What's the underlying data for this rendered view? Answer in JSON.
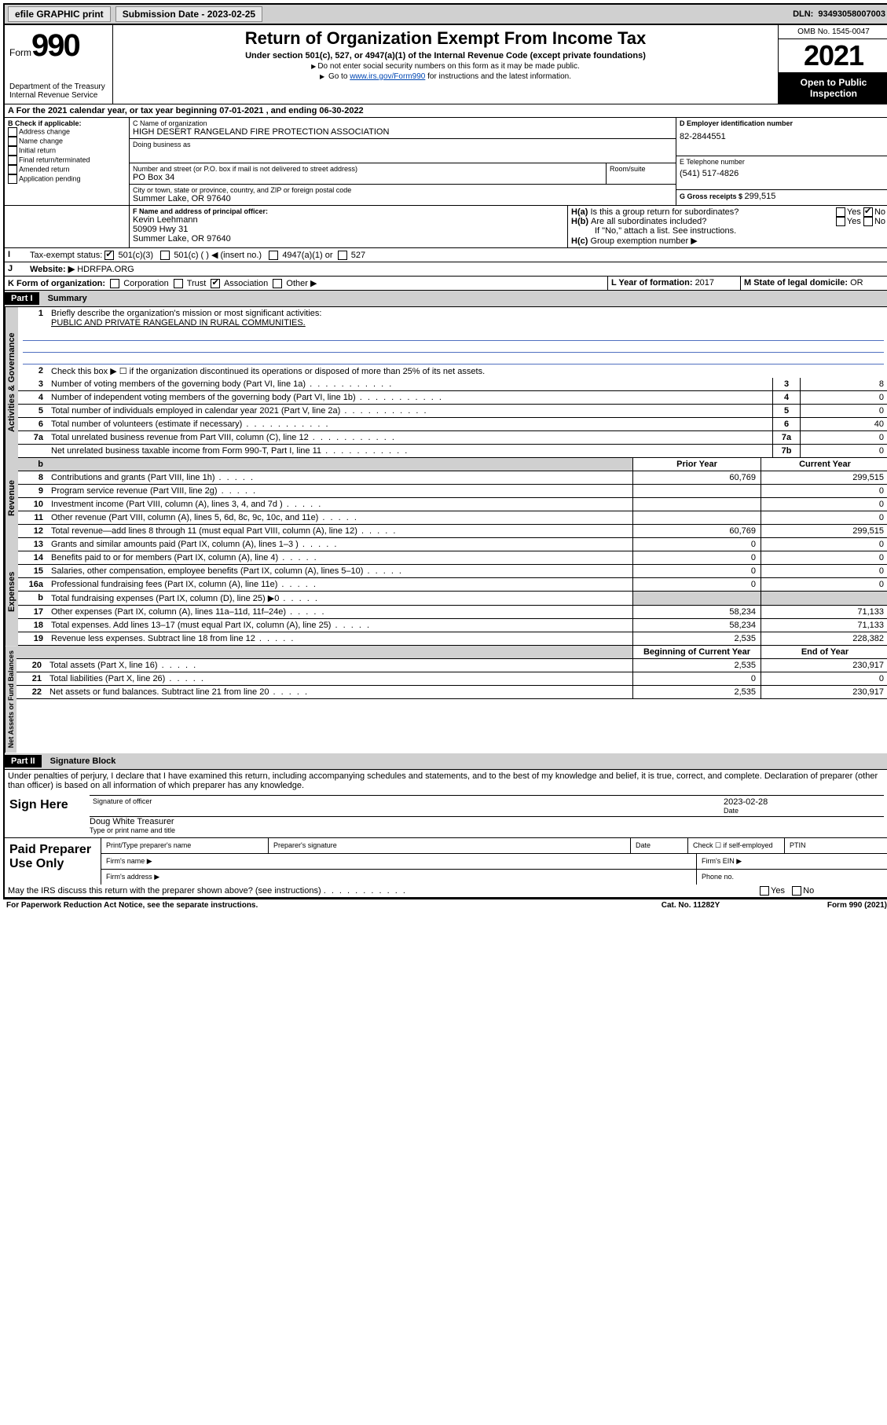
{
  "topbar": {
    "efile": "efile GRAPHIC print",
    "sub_label": "Submission Date - ",
    "sub_date": "2023-02-25",
    "dln_label": "DLN: ",
    "dln": "93493058007003"
  },
  "header": {
    "form_word": "Form",
    "form_num": "990",
    "dept": "Department of the Treasury",
    "irs": "Internal Revenue Service",
    "title": "Return of Organization Exempt From Income Tax",
    "subtitle": "Under section 501(c), 527, or 4947(a)(1) of the Internal Revenue Code (except private foundations)",
    "note1": "Do not enter social security numbers on this form as it may be made public.",
    "note2_pre": "Go to ",
    "note2_link": "www.irs.gov/Form990",
    "note2_post": " for instructions and the latest information.",
    "omb": "OMB No. 1545-0047",
    "year": "2021",
    "inspect": "Open to Public Inspection"
  },
  "periodA": {
    "text_pre": "For the 2021 calendar year, or tax year beginning ",
    "begin": "07-01-2021",
    "mid": " , and ending ",
    "end": "06-30-2022"
  },
  "B": {
    "hdr": "B Check if applicable:",
    "items": [
      "Address change",
      "Name change",
      "Initial return",
      "Final return/terminated",
      "Amended return",
      "Application pending"
    ]
  },
  "C": {
    "name_lbl": "C Name of organization",
    "name": "HIGH DESERT RANGELAND FIRE PROTECTION ASSOCIATION",
    "dba_lbl": "Doing business as",
    "addr_lbl": "Number and street (or P.O. box if mail is not delivered to street address)",
    "room_lbl": "Room/suite",
    "addr": "PO Box 34",
    "city_lbl": "City or town, state or province, country, and ZIP or foreign postal code",
    "city": "Summer Lake, OR  97640"
  },
  "D": {
    "lbl": "D Employer identification number",
    "val": "82-2844551"
  },
  "E": {
    "lbl": "E Telephone number",
    "val": "(541) 517-4826"
  },
  "G": {
    "lbl": "G Gross receipts $ ",
    "val": "299,515"
  },
  "F": {
    "lbl": "F Name and address of principal officer:",
    "name": "Kevin Leehmann",
    "addr1": "50909 Hwy 31",
    "addr2": "Summer Lake, OR  97640"
  },
  "H": {
    "a": "Is this a group return for subordinates?",
    "b": "Are all subordinates included?",
    "b_note": "If \"No,\" attach a list. See instructions.",
    "c": "Group exemption number ▶",
    "yes": "Yes",
    "no": "No"
  },
  "I": {
    "lbl": "Tax-exempt status:",
    "opt1": "501(c)(3)",
    "opt2": "501(c) (  ) ◀ (insert no.)",
    "opt3": "4947(a)(1) or",
    "opt4": "527"
  },
  "J": {
    "lbl": "Website: ▶",
    "val": "HDRFPA.ORG"
  },
  "K": {
    "lbl": "K Form of organization:",
    "opts": [
      "Corporation",
      "Trust",
      "Association",
      "Other ▶"
    ]
  },
  "L": {
    "lbl": "L Year of formation: ",
    "val": "2017"
  },
  "M": {
    "lbl": "M State of legal domicile: ",
    "val": "OR"
  },
  "partI": {
    "hdr": "Part I",
    "title": "Summary",
    "q1": "Briefly describe the organization's mission or most significant activities:",
    "mission": "PUBLIC AND PRIVATE RANGELAND IN RURAL COMMUNITIES.",
    "q2": "Check this box ▶ ☐  if the organization discontinued its operations or disposed of more than 25% of its net assets.",
    "rows": [
      {
        "n": "3",
        "t": "Number of voting members of the governing body (Part VI, line 1a)",
        "box": "3",
        "v": "8"
      },
      {
        "n": "4",
        "t": "Number of independent voting members of the governing body (Part VI, line 1b)",
        "box": "4",
        "v": "0"
      },
      {
        "n": "5",
        "t": "Total number of individuals employed in calendar year 2021 (Part V, line 2a)",
        "box": "5",
        "v": "0"
      },
      {
        "n": "6",
        "t": "Total number of volunteers (estimate if necessary)",
        "box": "6",
        "v": "40"
      },
      {
        "n": "7a",
        "t": "Total unrelated business revenue from Part VIII, column (C), line 12",
        "box": "7a",
        "v": "0"
      },
      {
        "n": "",
        "t": "Net unrelated business taxable income from Form 990-T, Part I, line 11",
        "box": "7b",
        "v": "0"
      }
    ],
    "col_prior": "Prior Year",
    "col_current": "Current Year",
    "revenue": [
      {
        "n": "8",
        "t": "Contributions and grants (Part VIII, line 1h)",
        "p": "60,769",
        "c": "299,515"
      },
      {
        "n": "9",
        "t": "Program service revenue (Part VIII, line 2g)",
        "p": "",
        "c": "0"
      },
      {
        "n": "10",
        "t": "Investment income (Part VIII, column (A), lines 3, 4, and 7d )",
        "p": "",
        "c": "0"
      },
      {
        "n": "11",
        "t": "Other revenue (Part VIII, column (A), lines 5, 6d, 8c, 9c, 10c, and 11e)",
        "p": "",
        "c": "0"
      },
      {
        "n": "12",
        "t": "Total revenue—add lines 8 through 11 (must equal Part VIII, column (A), line 12)",
        "p": "60,769",
        "c": "299,515"
      }
    ],
    "expenses": [
      {
        "n": "13",
        "t": "Grants and similar amounts paid (Part IX, column (A), lines 1–3 )",
        "p": "0",
        "c": "0"
      },
      {
        "n": "14",
        "t": "Benefits paid to or for members (Part IX, column (A), line 4)",
        "p": "0",
        "c": "0"
      },
      {
        "n": "15",
        "t": "Salaries, other compensation, employee benefits (Part IX, column (A), lines 5–10)",
        "p": "0",
        "c": "0"
      },
      {
        "n": "16a",
        "t": "Professional fundraising fees (Part IX, column (A), line 11e)",
        "p": "0",
        "c": "0"
      },
      {
        "n": "b",
        "t": "Total fundraising expenses (Part IX, column (D), line 25) ▶0",
        "p": "shade",
        "c": "shade"
      },
      {
        "n": "17",
        "t": "Other expenses (Part IX, column (A), lines 11a–11d, 11f–24e)",
        "p": "58,234",
        "c": "71,133"
      },
      {
        "n": "18",
        "t": "Total expenses. Add lines 13–17 (must equal Part IX, column (A), line 25)",
        "p": "58,234",
        "c": "71,133"
      },
      {
        "n": "19",
        "t": "Revenue less expenses. Subtract line 18 from line 12",
        "p": "2,535",
        "c": "228,382"
      }
    ],
    "col_begin": "Beginning of Current Year",
    "col_end": "End of Year",
    "netassets": [
      {
        "n": "20",
        "t": "Total assets (Part X, line 16)",
        "p": "2,535",
        "c": "230,917"
      },
      {
        "n": "21",
        "t": "Total liabilities (Part X, line 26)",
        "p": "0",
        "c": "0"
      },
      {
        "n": "22",
        "t": "Net assets or fund balances. Subtract line 21 from line 20",
        "p": "2,535",
        "c": "230,917"
      }
    ],
    "tabs": {
      "gov": "Activities & Governance",
      "rev": "Revenue",
      "exp": "Expenses",
      "net": "Net Assets or Fund Balances"
    }
  },
  "partII": {
    "hdr": "Part II",
    "title": "Signature Block",
    "penalty": "Under penalties of perjury, I declare that I have examined this return, including accompanying schedules and statements, and to the best of my knowledge and belief, it is true, correct, and complete. Declaration of preparer (other than officer) is based on all information of which preparer has any knowledge.",
    "sign_here": "Sign Here",
    "sig_officer": "Signature of officer",
    "sig_date_lbl": "Date",
    "sig_date": "2023-02-28",
    "officer_name": "Doug White  Treasurer",
    "type_name": "Type or print name and title",
    "paid": "Paid Preparer Use Only",
    "prep_name": "Print/Type preparer's name",
    "prep_sig": "Preparer's signature",
    "date": "Date",
    "check_self": "Check ☐ if self-employed",
    "ptin": "PTIN",
    "firm_name": "Firm's name  ▶",
    "firm_ein": "Firm's EIN ▶",
    "firm_addr": "Firm's address ▶",
    "phone": "Phone no.",
    "may_irs": "May the IRS discuss this return with the preparer shown above? (see instructions)"
  },
  "footer": {
    "paperwork": "For Paperwork Reduction Act Notice, see the separate instructions.",
    "cat": "Cat. No. 11282Y",
    "form": "Form 990 (2021)"
  }
}
